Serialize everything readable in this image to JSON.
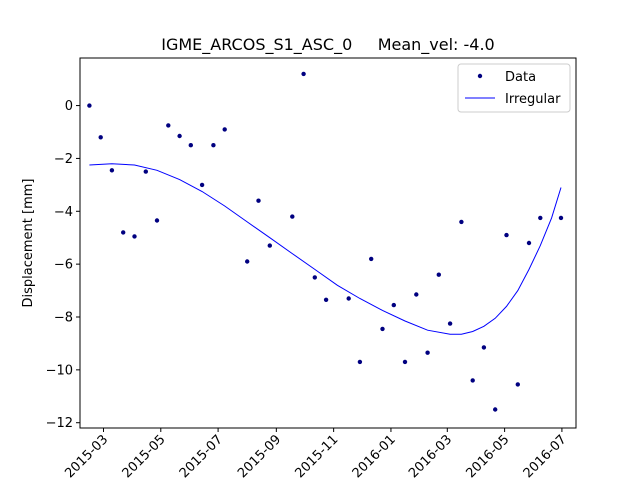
{
  "chart_data": {
    "type": "scatter",
    "title": "IGME_ARCOS_S1_ASC_0     Mean_vel: -4.0",
    "xlabel": "",
    "ylabel": "Displacement [mm]",
    "x_axis_type": "date",
    "xlim": [
      "2015-02-04",
      "2016-07-16"
    ],
    "ylim": [
      -12.2,
      1.8
    ],
    "xticks": [
      "2015-03-01",
      "2015-05-01",
      "2015-07-01",
      "2015-09-01",
      "2015-11-01",
      "2016-01-01",
      "2016-03-01",
      "2016-05-01",
      "2016-07-01"
    ],
    "xtick_labels": [
      "2015-03",
      "2015-05",
      "2015-07",
      "2015-09",
      "2015-11",
      "2016-01",
      "2016-03",
      "2016-05",
      "2016-07"
    ],
    "yticks": [
      0,
      -2,
      -4,
      -6,
      -8,
      -10,
      -12
    ],
    "ytick_labels": [
      "0",
      "−2",
      "−4",
      "−6",
      "−8",
      "−10",
      "−12"
    ],
    "grid": false,
    "legend_position": "top-right",
    "legend": [
      "Data",
      "Irregular"
    ],
    "colors": {
      "data": "#000080",
      "irregular": "#0000ff"
    },
    "series": [
      {
        "name": "Data",
        "style": "scatter",
        "x": [
          "2015-02-14",
          "2015-02-26",
          "2015-03-10",
          "2015-03-22",
          "2015-04-03",
          "2015-04-15",
          "2015-04-27",
          "2015-05-09",
          "2015-05-21",
          "2015-06-02",
          "2015-06-14",
          "2015-06-26",
          "2015-07-08",
          "2015-08-01",
          "2015-08-13",
          "2015-08-25",
          "2015-09-18",
          "2015-09-30",
          "2015-10-12",
          "2015-10-24",
          "2015-11-17",
          "2015-11-29",
          "2015-12-11",
          "2015-12-23",
          "2016-01-04",
          "2016-01-16",
          "2016-01-28",
          "2016-02-09",
          "2016-02-21",
          "2016-03-04",
          "2016-03-16",
          "2016-03-28",
          "2016-04-09",
          "2016-04-21",
          "2016-05-03",
          "2016-05-15",
          "2016-05-27",
          "2016-06-08",
          "2016-06-30"
        ],
        "y": [
          0.0,
          -1.2,
          -2.45,
          -4.8,
          -4.95,
          -2.5,
          -4.35,
          -0.75,
          -1.15,
          -1.5,
          -3.0,
          -1.5,
          -0.9,
          -5.9,
          -3.6,
          -5.3,
          -4.2,
          1.2,
          -6.5,
          -7.35,
          -7.3,
          -9.7,
          -5.8,
          -8.45,
          -7.55,
          -9.7,
          -7.15,
          -9.35,
          -6.4,
          -8.25,
          -4.4,
          -10.4,
          -9.15,
          -11.5,
          -4.9,
          -10.55,
          -5.2,
          -4.25,
          -4.25
        ]
      },
      {
        "name": "Irregular",
        "style": "line",
        "x": [
          "2015-02-14",
          "2015-03-10",
          "2015-04-03",
          "2015-04-27",
          "2015-05-21",
          "2015-06-14",
          "2015-07-08",
          "2015-08-01",
          "2015-08-25",
          "2015-09-18",
          "2015-10-12",
          "2015-11-05",
          "2015-11-29",
          "2015-12-23",
          "2016-01-16",
          "2016-02-09",
          "2016-03-04",
          "2016-03-16",
          "2016-03-28",
          "2016-04-09",
          "2016-04-21",
          "2016-05-03",
          "2016-05-15",
          "2016-05-27",
          "2016-06-08",
          "2016-06-20",
          "2016-06-30"
        ],
        "y": [
          -2.25,
          -2.2,
          -2.25,
          -2.45,
          -2.8,
          -3.25,
          -3.8,
          -4.4,
          -5.0,
          -5.6,
          -6.2,
          -6.8,
          -7.3,
          -7.75,
          -8.15,
          -8.5,
          -8.65,
          -8.65,
          -8.55,
          -8.35,
          -8.05,
          -7.6,
          -7.0,
          -6.2,
          -5.3,
          -4.25,
          -3.1
        ]
      }
    ]
  }
}
